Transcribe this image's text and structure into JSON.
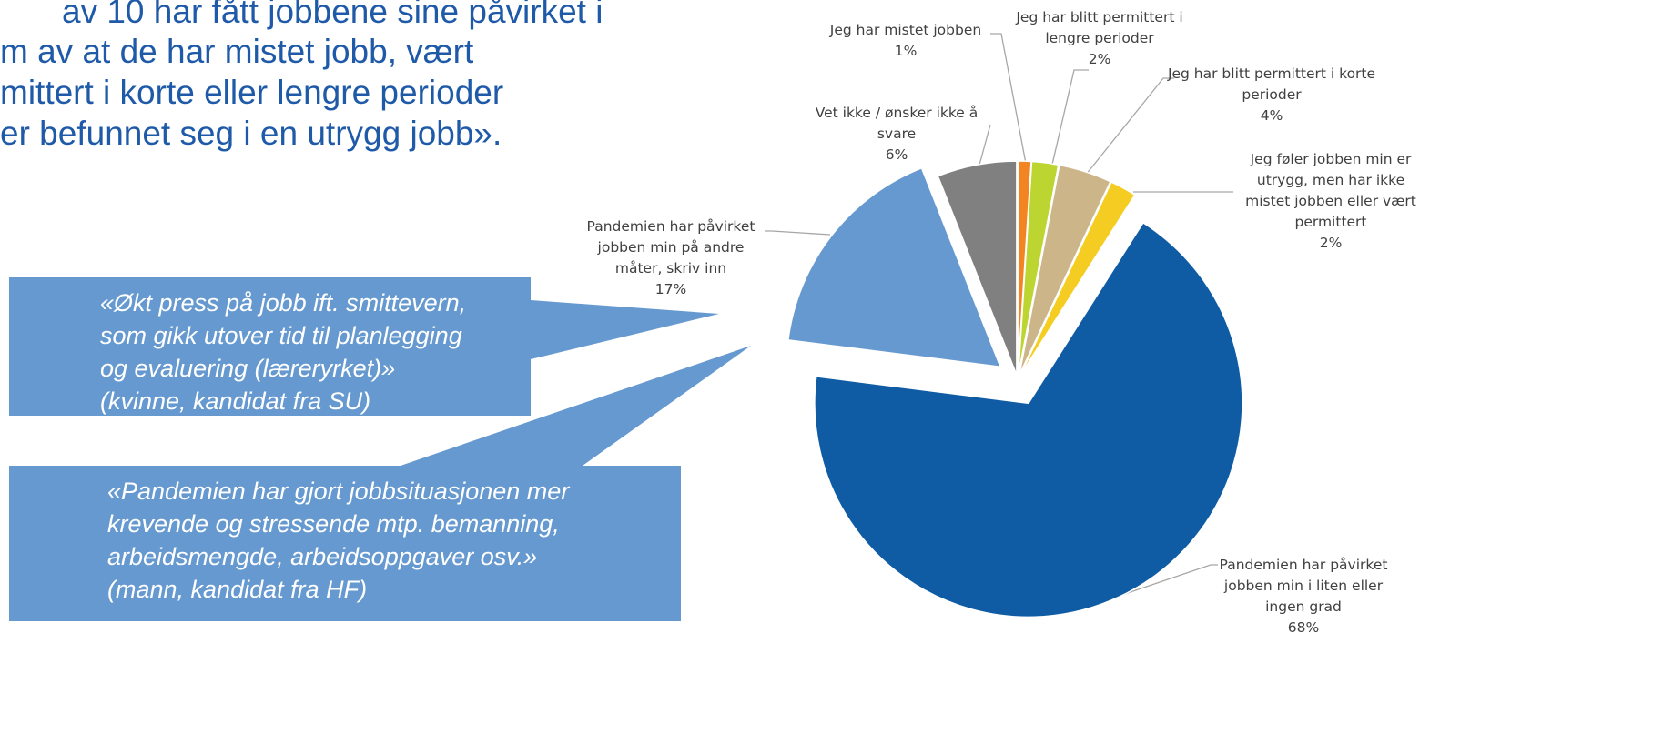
{
  "heading": {
    "lines": [
      "av 10 har fått jobbene sine påvirket i",
      "m av at de har mistet jobb, vært",
      "mittert i korte eller lengre perioder",
      "er befunnet seg i en utrygg jobb»."
    ]
  },
  "quotes": [
    {
      "lines": [
        "«Økt press på jobb ift. smittevern,",
        "som gikk utover tid til planlegging",
        "og evaluering (læreryrket)»",
        "(kvinne, kandidat fra SU)"
      ]
    },
    {
      "lines": [
        "«Pandemien har gjort jobbsituasjonen mer",
        "krevende og stressende mtp. bemanning,",
        "arbeidsmengde, arbeidsoppgaver osv.»",
        "(mann, kandidat fra HF)"
      ]
    }
  ],
  "chart_data": {
    "type": "pie",
    "categories": [
      "Jeg har mistet jobben",
      "Jeg har blitt permittert i lengre perioder",
      "Jeg har blitt permittert i korte perioder",
      "Jeg føler jobben min er utrygg, men har ikke mistet jobben eller vært permittert",
      "Pandemien har påvirket jobben min i liten eller ingen grad",
      "Pandemien har påvirket jobben min på andre måter, skriv inn",
      "Vet ikke / ønsker ikke å svare"
    ],
    "values": [
      1,
      2,
      4,
      2,
      68,
      17,
      6
    ],
    "value_labels": [
      "1%",
      "2%",
      "4%",
      "2%",
      "68%",
      "17%",
      "6%"
    ],
    "colors": [
      "#f28522",
      "#bcd530",
      "#cdb58a",
      "#f5cd22",
      "#0f5ca5",
      "#6699cf",
      "#808080"
    ]
  }
}
